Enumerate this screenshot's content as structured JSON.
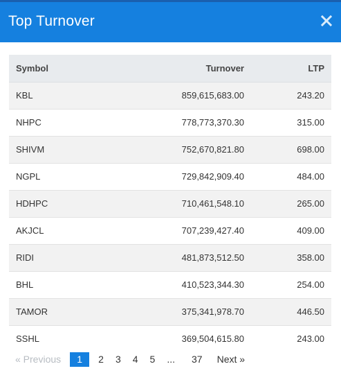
{
  "modal": {
    "title": "Top Turnover",
    "close_icon": "close-icon"
  },
  "table": {
    "columns": [
      "Symbol",
      "Turnover",
      "LTP"
    ],
    "rows": [
      {
        "symbol": "KBL",
        "turnover": "859,615,683.00",
        "ltp": "243.20"
      },
      {
        "symbol": "NHPC",
        "turnover": "778,773,370.30",
        "ltp": "315.00"
      },
      {
        "symbol": "SHIVM",
        "turnover": "752,670,821.80",
        "ltp": "698.00"
      },
      {
        "symbol": "NGPL",
        "turnover": "729,842,909.40",
        "ltp": "484.00"
      },
      {
        "symbol": "HDHPC",
        "turnover": "710,461,548.10",
        "ltp": "265.00"
      },
      {
        "symbol": "AKJCL",
        "turnover": "707,239,427.40",
        "ltp": "409.00"
      },
      {
        "symbol": "RIDI",
        "turnover": "481,873,512.50",
        "ltp": "358.00"
      },
      {
        "symbol": "BHL",
        "turnover": "410,523,344.30",
        "ltp": "254.00"
      },
      {
        "symbol": "TAMOR",
        "turnover": "375,341,978.70",
        "ltp": "446.50"
      },
      {
        "symbol": "SSHL",
        "turnover": "369,504,615.80",
        "ltp": "243.00"
      }
    ]
  },
  "pagination": {
    "previous_label": "« Previous",
    "pages": [
      "1",
      "2",
      "3",
      "4",
      "5"
    ],
    "ellipsis": "...",
    "last_page": "37",
    "next_label": "Next »",
    "current": "1"
  },
  "colors": {
    "header": "#1580df",
    "active_page": "#1580df",
    "row_stripe": "#f2f2f2",
    "table_header": "#e8ebee"
  }
}
